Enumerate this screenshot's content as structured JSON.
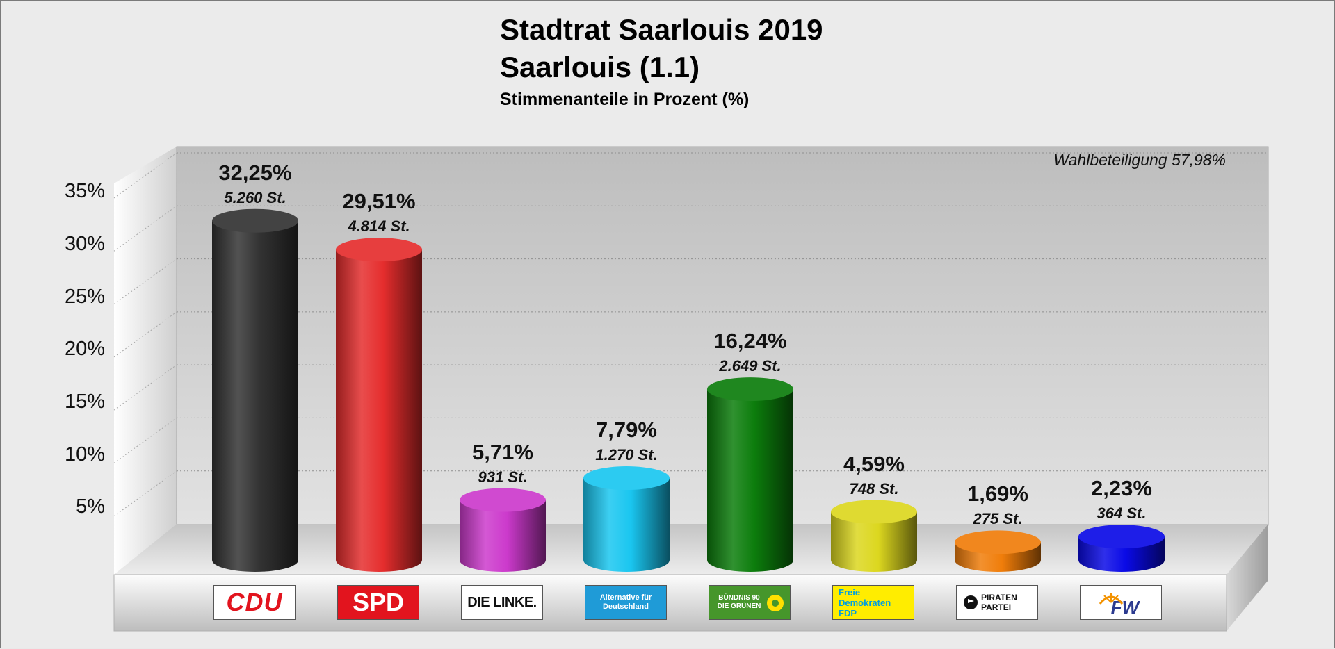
{
  "title": "Stadtrat Saarlouis 2019",
  "subtitle": "Saarlouis (1.1)",
  "caption": "Stimmenanteile in Prozent (%)",
  "turnout": "Wahlbeteiligung 57,98%",
  "chart_data": {
    "type": "bar",
    "categories": [
      "CDU",
      "SPD",
      "DIE LINKE.",
      "AfD",
      "GRÜNE",
      "FDP",
      "PIRATEN",
      "FW"
    ],
    "values": [
      32.25,
      29.51,
      5.71,
      7.79,
      16.24,
      4.59,
      1.69,
      2.23
    ],
    "value_labels": [
      "32,25%",
      "29,51%",
      "5,71%",
      "7,79%",
      "16,24%",
      "4,59%",
      "1,69%",
      "2,23%"
    ],
    "vote_labels": [
      "5.260 St.",
      "4.814 St.",
      "931 St.",
      "1.270 St.",
      "2.649 St.",
      "748 St.",
      "275 St.",
      "364 St."
    ],
    "colors": [
      "#333333",
      "#e52d2d",
      "#cc3acc",
      "#1ac6f0",
      "#0c7d0c",
      "#dcd71f",
      "#f07d0a",
      "#0a0ae6"
    ],
    "ylim": [
      0,
      35
    ],
    "yticks": [
      "5%",
      "10%",
      "15%",
      "20%",
      "25%",
      "30%",
      "35%"
    ],
    "grid": true,
    "style": "3d-cylinder"
  },
  "logos": [
    {
      "icon": "cdu-logo",
      "text": "CDU",
      "color": "#e2141e"
    },
    {
      "icon": "spd-logo",
      "text": "SPD",
      "color": "#e2141e"
    },
    {
      "icon": "die-linke-logo",
      "text": "DIE LINKE.",
      "color": "#111111"
    },
    {
      "icon": "afd-logo",
      "text": "Alternative für Deutschland",
      "color": "#1f9bd7"
    },
    {
      "icon": "gruene-logo",
      "text": "BÜNDNIS 90 DIE GRÜNEN",
      "color": "#46962b"
    },
    {
      "icon": "fdp-logo",
      "text": "Freie Demokraten FDP",
      "color": "#ffed00"
    },
    {
      "icon": "piraten-logo",
      "text": "PIRATEN PARTEI",
      "color": "#f39200"
    },
    {
      "icon": "fw-logo",
      "text": "FW",
      "color": "#2b3a8f"
    }
  ]
}
